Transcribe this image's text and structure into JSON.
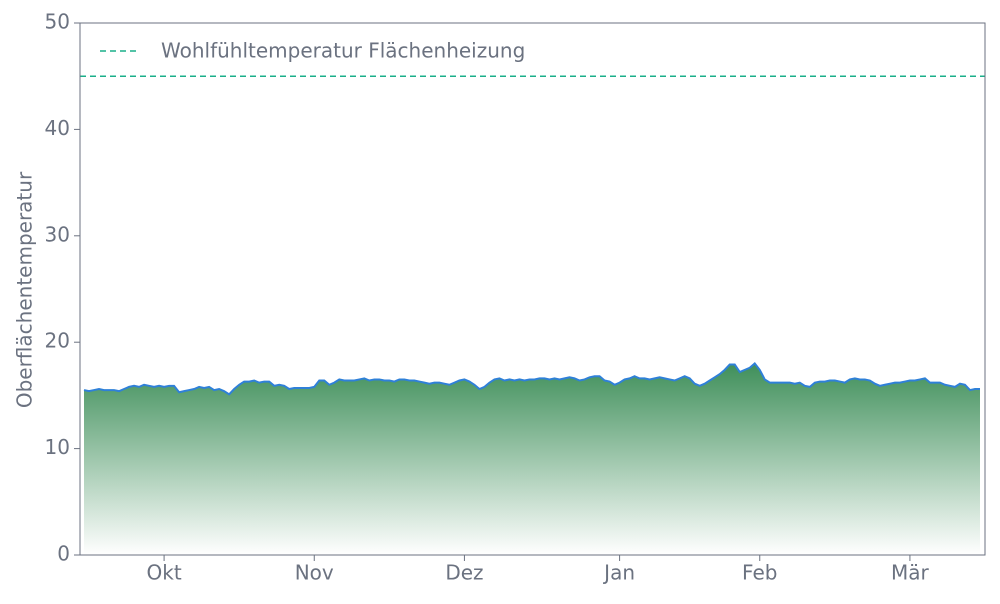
{
  "chart_data": {
    "type": "area",
    "ylabel": "Oberflächentemperatur",
    "ylim": [
      0,
      50
    ],
    "yticks": [
      0,
      10,
      20,
      30,
      40,
      50
    ],
    "categories": [
      null,
      null,
      null,
      null,
      null,
      null,
      null,
      null,
      null,
      null,
      null,
      null,
      null,
      null,
      null,
      null,
      "Okt",
      null,
      null,
      null,
      null,
      null,
      null,
      null,
      null,
      null,
      null,
      null,
      null,
      null,
      null,
      null,
      null,
      null,
      null,
      null,
      null,
      null,
      null,
      null,
      null,
      null,
      null,
      null,
      null,
      null,
      "Nov",
      null,
      null,
      null,
      null,
      null,
      null,
      null,
      null,
      null,
      null,
      null,
      null,
      null,
      null,
      null,
      null,
      null,
      null,
      null,
      null,
      null,
      null,
      null,
      null,
      null,
      null,
      null,
      null,
      null,
      "Dez",
      null,
      null,
      null,
      null,
      null,
      null,
      null,
      null,
      null,
      null,
      null,
      null,
      null,
      null,
      null,
      null,
      null,
      null,
      null,
      null,
      null,
      null,
      null,
      null,
      null,
      null,
      null,
      null,
      null,
      null,
      "Jan",
      null,
      null,
      null,
      null,
      null,
      null,
      null,
      null,
      null,
      null,
      null,
      null,
      null,
      null,
      null,
      null,
      null,
      null,
      null,
      null,
      null,
      null,
      null,
      null,
      null,
      null,
      null,
      "Feb",
      null,
      null,
      null,
      null,
      null,
      null,
      null,
      null,
      null,
      null,
      null,
      null,
      null,
      null,
      null,
      null,
      null,
      null,
      null,
      null,
      null,
      null,
      null,
      null,
      null,
      null,
      null,
      null,
      null,
      "Mär",
      null,
      null,
      null,
      null,
      null,
      null,
      null,
      null,
      null,
      null,
      null,
      null,
      null,
      null
    ],
    "series": [
      {
        "color": "#2f80d8",
        "fill_color": "#3f8f5a",
        "values": [
          15.5,
          15.4,
          15.5,
          15.6,
          15.5,
          15.5,
          15.5,
          15.4,
          15.6,
          15.8,
          15.9,
          15.8,
          16.0,
          15.9,
          15.8,
          15.9,
          15.8,
          15.9,
          15.9,
          15.3,
          15.4,
          15.5,
          15.6,
          15.8,
          15.7,
          15.8,
          15.5,
          15.6,
          15.4,
          15.1,
          15.6,
          16.0,
          16.3,
          16.3,
          16.4,
          16.2,
          16.3,
          16.3,
          15.9,
          16.0,
          15.9,
          15.6,
          15.7,
          15.7,
          15.7,
          15.7,
          15.8,
          16.4,
          16.4,
          16.0,
          16.2,
          16.5,
          16.4,
          16.4,
          16.4,
          16.5,
          16.6,
          16.4,
          16.5,
          16.5,
          16.4,
          16.4,
          16.3,
          16.5,
          16.5,
          16.4,
          16.4,
          16.3,
          16.2,
          16.1,
          16.2,
          16.2,
          16.1,
          16.0,
          16.2,
          16.4,
          16.5,
          16.3,
          16.0,
          15.6,
          15.8,
          16.2,
          16.5,
          16.6,
          16.4,
          16.5,
          16.4,
          16.5,
          16.4,
          16.5,
          16.5,
          16.6,
          16.6,
          16.5,
          16.6,
          16.5,
          16.6,
          16.7,
          16.6,
          16.4,
          16.5,
          16.7,
          16.8,
          16.8,
          16.4,
          16.3,
          16.0,
          16.2,
          16.5,
          16.6,
          16.8,
          16.6,
          16.6,
          16.5,
          16.6,
          16.7,
          16.6,
          16.5,
          16.4,
          16.6,
          16.8,
          16.6,
          16.1,
          15.9,
          16.1,
          16.4,
          16.7,
          17.0,
          17.4,
          17.9,
          17.9,
          17.2,
          17.4,
          17.6,
          18.0,
          17.4,
          16.5,
          16.2,
          16.2,
          16.2,
          16.2,
          16.2,
          16.1,
          16.2,
          15.9,
          15.8,
          16.2,
          16.3,
          16.3,
          16.4,
          16.4,
          16.3,
          16.2,
          16.5,
          16.6,
          16.5,
          16.5,
          16.4,
          16.1,
          15.9,
          16.0,
          16.1,
          16.2,
          16.2,
          16.3,
          16.4,
          16.4,
          16.5,
          16.6,
          16.2,
          16.2,
          16.2,
          16.0,
          15.9,
          15.8,
          16.1,
          16.0,
          15.5,
          15.6,
          15.6
        ]
      }
    ],
    "reference_line": {
      "value": 45,
      "label": "Wohlfühltemperatur Flächenheizung",
      "color": "#1aaf8a"
    },
    "legend": "upper left"
  }
}
